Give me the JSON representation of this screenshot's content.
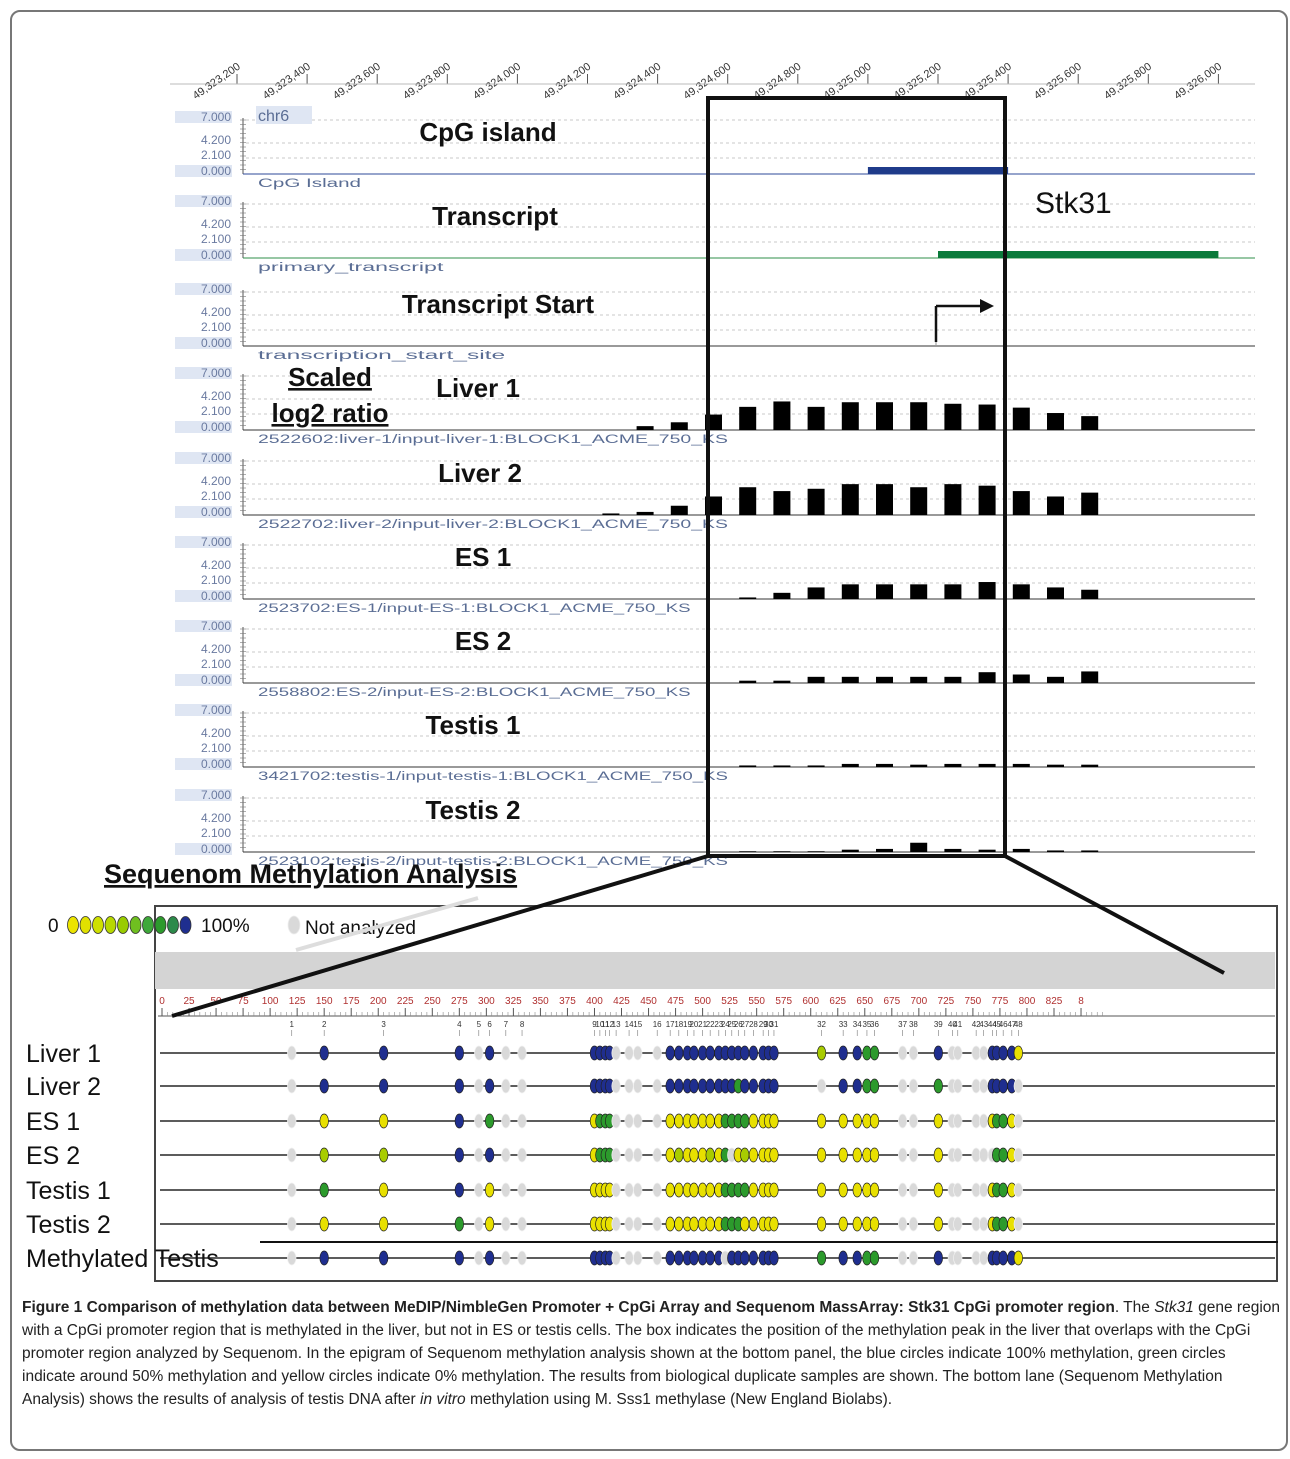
{
  "genome_browser": {
    "coordinate_ticks": [
      "49,323,200",
      "49,323,400",
      "49,323,600",
      "49,323,800",
      "49,324,000",
      "49,324,200",
      "49,324,400",
      "49,324,600",
      "49,324,800",
      "49,325,000",
      "49,325,200",
      "49,325,400",
      "49,325,600",
      "49,325,800",
      "49,326,000"
    ],
    "y_ticks": [
      "7.000",
      "4.200",
      "2.100",
      "0.000"
    ],
    "chrom_label": "chr6",
    "gene_label": "Stk31",
    "scale_label_1": "Scaled",
    "scale_label_2": "log2 ratio",
    "tracks": [
      {
        "title": "CpG island",
        "sublabel": "CpG Island",
        "kind": "feature",
        "color": "#1f3b8a",
        "start": 49325000,
        "end": 49325400
      },
      {
        "title": "Transcript",
        "sublabel": "primary_transcript",
        "kind": "feature",
        "color": "#0a7a3a",
        "start": 49325200,
        "end": 49326000
      },
      {
        "title": "Transcript Start",
        "sublabel": "transcription_start_site",
        "kind": "tss",
        "position": 49325200
      },
      {
        "title": "Liver 1",
        "sublabel": "2522602:liver-1/input-liver-1:BLOCK1_ACME_750_KS",
        "kind": "bars",
        "values": [
          0,
          0,
          0,
          0.5,
          1.0,
          2.0,
          3.0,
          3.7,
          3.0,
          3.6,
          3.6,
          3.6,
          3.4,
          3.3,
          2.9,
          2.2,
          1.8
        ]
      },
      {
        "title": "Liver 2",
        "sublabel": "2522702:liver-2/input-liver-2:BLOCK1_ACME_750_KS",
        "kind": "bars",
        "values": [
          0,
          0,
          0.2,
          0.4,
          1.2,
          2.4,
          3.6,
          3.1,
          3.4,
          4.0,
          4.0,
          3.6,
          4.0,
          3.8,
          3.1,
          2.4,
          2.9
        ]
      },
      {
        "title": "ES 1",
        "sublabel": "2523702:ES-1/input-ES-1:BLOCK1_ACME_750_KS",
        "kind": "bars",
        "values": [
          0,
          0,
          0,
          0,
          0,
          0,
          0.2,
          0.8,
          1.5,
          1.9,
          1.9,
          1.9,
          1.9,
          2.2,
          1.9,
          1.5,
          1.2
        ]
      },
      {
        "title": "ES 2",
        "sublabel": "2558802:ES-2/input-ES-2:BLOCK1_ACME_750_KS",
        "kind": "bars",
        "values": [
          0,
          0,
          0,
          0,
          0,
          0,
          0.3,
          0.3,
          0.8,
          0.8,
          0.8,
          0.8,
          0.8,
          1.4,
          1.1,
          0.8,
          1.5
        ]
      },
      {
        "title": "Testis 1",
        "sublabel": "3421702:testis-1/input-testis-1:BLOCK1_ACME_750_KS",
        "kind": "bars",
        "values": [
          0,
          0,
          0,
          0,
          0,
          0,
          0.2,
          0.2,
          0.2,
          0.4,
          0.4,
          0.3,
          0.4,
          0.4,
          0.4,
          0.3,
          0.3
        ]
      },
      {
        "title": "Testis 2",
        "sublabel": "2523102:testis-2/input-testis-2:BLOCK1_ACME_750_KS",
        "kind": "bars",
        "values": [
          0,
          0,
          0,
          0,
          0,
          0,
          0.1,
          0.1,
          0.1,
          0.3,
          0.4,
          1.2,
          0.4,
          0.3,
          0.4,
          0.2,
          0.2
        ]
      }
    ]
  },
  "sequenom": {
    "title": "Sequenom Methylation Analysis",
    "legend_min": "0",
    "legend_max": "100%",
    "legend_na": "Not analyzed",
    "ruler_ticks": [
      "0",
      "25",
      "50",
      "75",
      "100",
      "125",
      "150",
      "175",
      "200",
      "225",
      "250",
      "275",
      "300",
      "325",
      "350",
      "375",
      "400",
      "425",
      "450",
      "475",
      "500",
      "525",
      "550",
      "575",
      "600",
      "625",
      "650",
      "675",
      "700",
      "725",
      "750",
      "775",
      "800",
      "825",
      "8"
    ],
    "cpg_labels": [
      "1",
      "2",
      "3",
      "4",
      "5",
      "6",
      "7",
      "8",
      "9",
      "10",
      "11",
      "12",
      "13",
      "14",
      "15",
      "16",
      "17",
      "18",
      "19",
      "20",
      "21",
      "22",
      "23",
      "24",
      "25",
      "26",
      "27",
      "28",
      "29",
      "30",
      "31",
      "32",
      "33",
      "34",
      "35",
      "36",
      "37",
      "38",
      "39",
      "40",
      "41",
      "42",
      "43",
      "44",
      "45",
      "46",
      "47",
      "48"
    ],
    "samples": [
      "Liver 1",
      "Liver 2",
      "ES 1",
      "ES 2",
      "Testis 1",
      "Testis 2",
      "Methylated Testis"
    ],
    "color_scale": {
      "unmethylated": "#e8e000",
      "partial": "#2c9a2c",
      "methylated": "#1f2e8f",
      "not_analyzed": "#d9d9d9"
    }
  },
  "caption": {
    "bold_head": "Figure 1 Comparison of methylation data between MeDIP/NimbleGen Promoter + CpGi Array and Sequenom MassArray: Stk31 CpGi promoter region",
    "text_1": ". The ",
    "gene_italic": "Stk31",
    "text_2": " gene region with a CpGi promoter region that is methylated in the liver, but not in ES or testis cells. The box indicates the position of the methylation peak in the liver that overlaps with the CpGi promoter region analyzed by Sequenom. In the epigram of Sequenom methylation analysis shown at the bottom panel, the blue circles indicate 100% methylation, green circles indicate around 50% methylation and yellow circles indicate 0% methylation. The results from biological duplicate samples are shown. The bottom lane (Sequenom Methylation Analysis) shows the results of analysis of testis DNA after ",
    "in_vitro": "in vitro",
    "text_3": " methylation using M. Sss1 methylase (New England Biolabs)."
  }
}
